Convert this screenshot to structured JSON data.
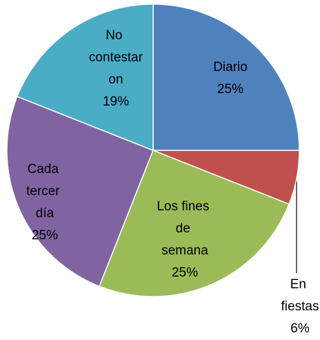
{
  "chart_data": {
    "type": "pie",
    "categories": [
      "Diario",
      "En fiestas",
      "Los fines de semana",
      "Cada tercer día",
      "No contestaron"
    ],
    "values": [
      25,
      6,
      25,
      25,
      19
    ],
    "value_labels": [
      "25%",
      "6%",
      "25%",
      "25%",
      "19%"
    ],
    "colors": [
      "#4f81bd",
      "#c0504d",
      "#9bbb59",
      "#8064a2",
      "#4bacc6"
    ]
  }
}
